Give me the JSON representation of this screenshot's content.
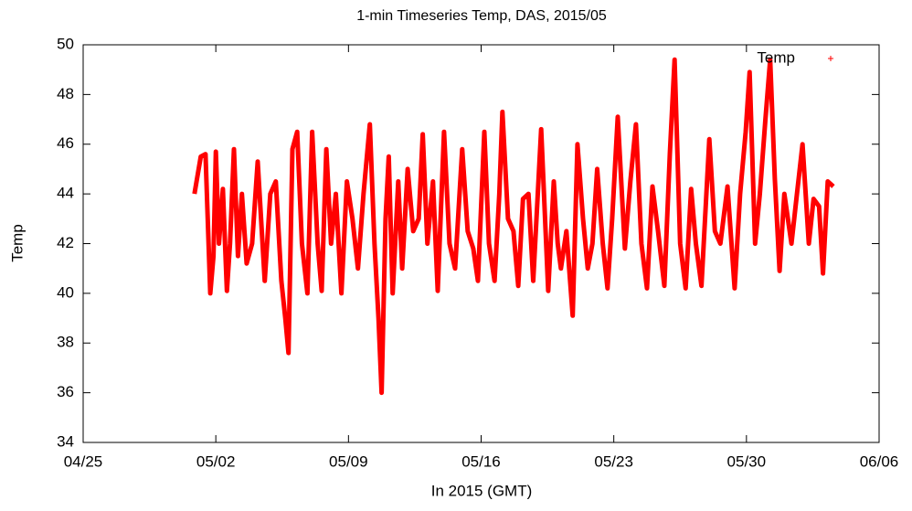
{
  "chart_data": {
    "type": "line",
    "title": "1-min Timeseries Temp, DAS, 2015/05",
    "x_label": "In 2015 (GMT)",
    "y_label": "Temp",
    "xlim": [
      "2015-04-25T00:00",
      "2015-06-06T00:00"
    ],
    "xticks": [
      {
        "value": "2015-04-25T00:00",
        "label": "04/25"
      },
      {
        "value": "2015-05-02T00:00",
        "label": "05/02"
      },
      {
        "value": "2015-05-09T00:00",
        "label": "05/09"
      },
      {
        "value": "2015-05-16T00:00",
        "label": "05/16"
      },
      {
        "value": "2015-05-23T00:00",
        "label": "05/23"
      },
      {
        "value": "2015-05-30T00:00",
        "label": "05/30"
      },
      {
        "value": "2015-06-06T00:00",
        "label": "06/06"
      }
    ],
    "ylim": [
      34,
      50
    ],
    "yticks": [
      34,
      36,
      38,
      40,
      42,
      44,
      46,
      48,
      50
    ],
    "grid": false,
    "legend": "top-right",
    "x": [
      "2015-04-30T21:00",
      "2015-05-01T05:00",
      "2015-05-01T11:00",
      "2015-05-01T17:00",
      "2015-05-01T21:00",
      "2015-05-02T00:00",
      "2015-05-02T04:00",
      "2015-05-02T09:00",
      "2015-05-02T14:00",
      "2015-05-02T18:00",
      "2015-05-02T23:00",
      "2015-05-03T04:00",
      "2015-05-03T09:00",
      "2015-05-03T15:00",
      "2015-05-03T22:00",
      "2015-05-04T05:00",
      "2015-05-04T14:00",
      "2015-05-04T21:00",
      "2015-05-05T04:00",
      "2015-05-05T11:00",
      "2015-05-05T16:00",
      "2015-05-05T20:00",
      "2015-05-06T01:00",
      "2015-05-06T07:00",
      "2015-05-06T13:00",
      "2015-05-06T20:00",
      "2015-05-07T02:00",
      "2015-05-07T09:00",
      "2015-05-07T14:00",
      "2015-05-07T20:00",
      "2015-05-08T02:00",
      "2015-05-08T08:00",
      "2015-05-08T15:00",
      "2015-05-08T22:00",
      "2015-05-09T05:00",
      "2015-05-09T12:00",
      "2015-05-09T19:00",
      "2015-05-10T03:00",
      "2015-05-10T09:00",
      "2015-05-10T14:00",
      "2015-05-10T18:00",
      "2015-05-10T23:00",
      "2015-05-11T03:00",
      "2015-05-11T08:00",
      "2015-05-11T15:00",
      "2015-05-11T20:00",
      "2015-05-12T03:00",
      "2015-05-12T10:00",
      "2015-05-12T17:00",
      "2015-05-12T22:00",
      "2015-05-13T04:00",
      "2015-05-13T11:00",
      "2015-05-13T17:00",
      "2015-05-14T01:00",
      "2015-05-14T08:00",
      "2015-05-14T15:00",
      "2015-05-15T00:00",
      "2015-05-15T07:00",
      "2015-05-15T14:00",
      "2015-05-15T20:00",
      "2015-05-16T04:00",
      "2015-05-16T10:00",
      "2015-05-16T17:00",
      "2015-05-16T23:00",
      "2015-05-17T03:00",
      "2015-05-17T10:00",
      "2015-05-17T17:00",
      "2015-05-17T23:00",
      "2015-05-18T05:00",
      "2015-05-18T12:00",
      "2015-05-18T18:00",
      "2015-05-19T04:00",
      "2015-05-19T13:00",
      "2015-05-19T20:00",
      "2015-05-20T01:00",
      "2015-05-20T05:00",
      "2015-05-20T12:00",
      "2015-05-20T20:00",
      "2015-05-21T02:00",
      "2015-05-21T09:00",
      "2015-05-21T15:00",
      "2015-05-21T21:00",
      "2015-05-22T03:00",
      "2015-05-22T10:00",
      "2015-05-22T16:00",
      "2015-05-22T22:00",
      "2015-05-23T05:00",
      "2015-05-23T14:00",
      "2015-05-23T21:00",
      "2015-05-24T04:00",
      "2015-05-24T11:00",
      "2015-05-24T18:00",
      "2015-05-25T01:00",
      "2015-05-25T08:00",
      "2015-05-25T16:00",
      "2015-05-25T23:00",
      "2015-05-26T05:00",
      "2015-05-26T12:00",
      "2015-05-26T19:00",
      "2015-05-27T02:00",
      "2015-05-27T08:00",
      "2015-05-27T15:00",
      "2015-05-28T01:00",
      "2015-05-28T08:00",
      "2015-05-28T15:00",
      "2015-05-29T00:00",
      "2015-05-29T09:00",
      "2015-05-29T16:00",
      "2015-05-29T23:00",
      "2015-05-30T04:00",
      "2015-05-30T11:00",
      "2015-05-30T17:00",
      "2015-05-31T00:00",
      "2015-05-31T06:00",
      "2015-05-31T12:00",
      "2015-05-31T18:00",
      "2015-06-01T00:00",
      "2015-06-01T09:00",
      "2015-06-01T16:00",
      "2015-06-01T23:00",
      "2015-06-02T07:00",
      "2015-06-02T13:00",
      "2015-06-02T20:00",
      "2015-06-03T01:00",
      "2015-06-03T07:00",
      "2015-06-03T14:00"
    ],
    "series": [
      {
        "name": "Temp",
        "color": "#ff0000",
        "values": [
          44,
          45.5,
          45.6,
          40,
          41.5,
          45.7,
          42,
          44.2,
          40.1,
          42,
          45.8,
          41.5,
          44,
          41.2,
          42,
          45.3,
          40.5,
          44,
          44.5,
          40.5,
          39,
          37.6,
          45.8,
          46.5,
          42,
          40,
          46.5,
          42,
          40.1,
          45.8,
          42,
          44,
          40,
          44.5,
          43,
          41,
          44,
          46.8,
          42,
          39,
          36,
          43,
          45.5,
          40,
          44.5,
          41,
          45,
          42.5,
          43,
          46.4,
          42,
          44.5,
          40.1,
          46.5,
          42,
          41,
          45.8,
          42.5,
          41.8,
          40.5,
          46.5,
          42,
          40.5,
          44,
          47.3,
          43,
          42.5,
          40.3,
          43.8,
          44,
          40.5,
          46.6,
          40.1,
          44.5,
          42,
          41,
          42.5,
          39.1,
          46,
          43,
          41,
          42,
          45,
          42,
          40.2,
          43,
          47.1,
          41.8,
          44.5,
          46.8,
          42,
          40.2,
          44.3,
          42.5,
          40.3,
          45.6,
          49.4,
          42,
          40.2,
          44.2,
          42,
          40.3,
          46.2,
          42.5,
          42,
          44.3,
          40.2,
          44,
          46.5,
          48.9,
          42,
          44,
          47,
          49.4,
          44.6,
          40.9,
          44,
          42,
          44,
          46,
          42,
          43.8,
          43.5,
          40.8,
          44.5,
          44.3
        ]
      }
    ]
  }
}
